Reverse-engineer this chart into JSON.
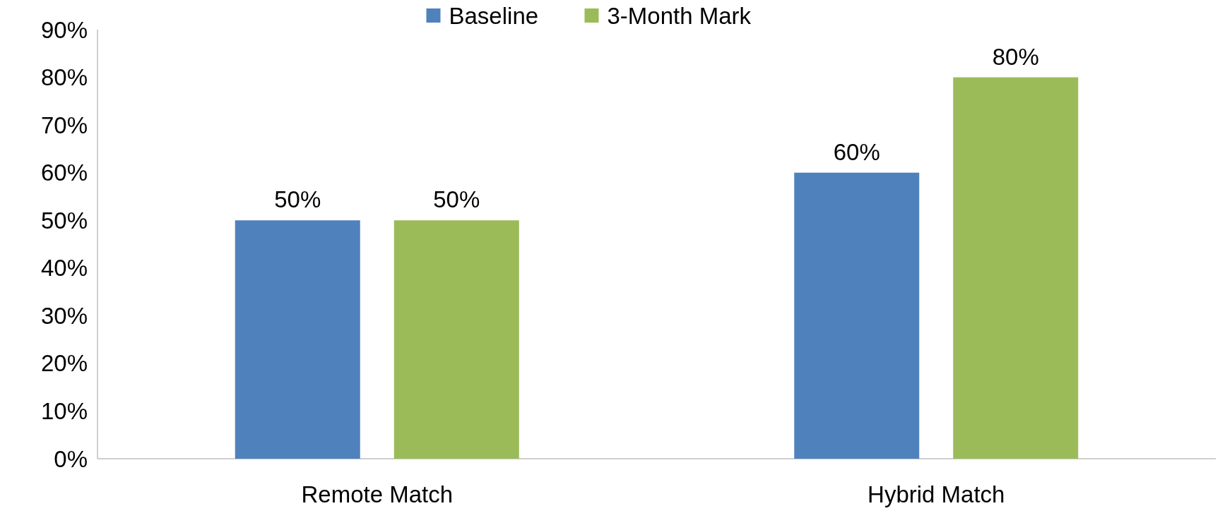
{
  "chart_data": {
    "type": "bar",
    "categories": [
      "Remote Match",
      "Hybrid Match"
    ],
    "series": [
      {
        "name": "Baseline",
        "color": "#4f81bd",
        "values": [
          50,
          60
        ],
        "value_labels": [
          "50%",
          "60%"
        ]
      },
      {
        "name": "3-Month Mark",
        "color": "#9bbb59",
        "values": [
          50,
          80
        ],
        "value_labels": [
          "50%",
          "80%"
        ]
      }
    ],
    "ylim": [
      0,
      90
    ],
    "yticks": [
      {
        "value": 0,
        "label": "0%"
      },
      {
        "value": 10,
        "label": "10%"
      },
      {
        "value": 20,
        "label": "20%"
      },
      {
        "value": 30,
        "label": "30%"
      },
      {
        "value": 40,
        "label": "40%"
      },
      {
        "value": 50,
        "label": "50%"
      },
      {
        "value": 60,
        "label": "60%"
      },
      {
        "value": 70,
        "label": "70%"
      },
      {
        "value": 80,
        "label": "80%"
      },
      {
        "value": 90,
        "label": "90%"
      }
    ],
    "grid": false,
    "legend": "top"
  }
}
